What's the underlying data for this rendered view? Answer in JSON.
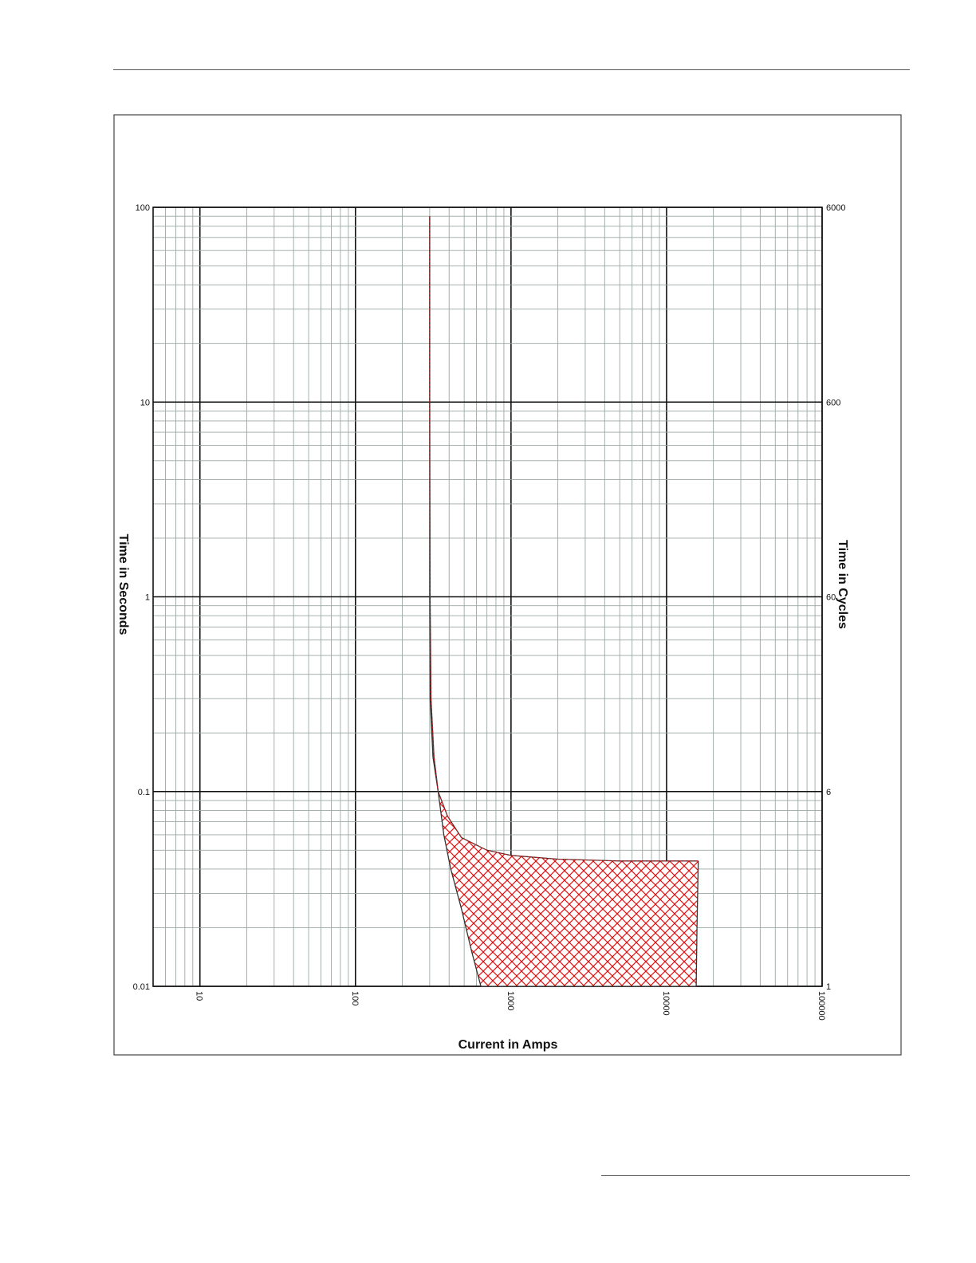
{
  "chart_data": {
    "type": "area",
    "xlabel": "Current in Amps",
    "ylabel": "Time in Seconds",
    "y2label": "Time in Cycles",
    "x_scale": "log",
    "y_scale": "log",
    "xlim": [
      5,
      100000
    ],
    "ylim": [
      0.01,
      100
    ],
    "y2lim": [
      1,
      6000
    ],
    "x_ticks": [
      "10",
      "100",
      "1000",
      "10000",
      "100000"
    ],
    "x_tick_values": [
      10,
      100,
      1000,
      10000,
      100000
    ],
    "y_ticks": [
      "100",
      "10",
      "1",
      "0.1",
      "0.01"
    ],
    "y_tick_values": [
      100,
      10,
      1,
      0.1,
      0.01
    ],
    "y2_ticks": [
      "6000",
      "600",
      "60",
      "6",
      "1"
    ],
    "y2_tick_values": [
      100,
      10,
      1,
      0.1,
      0.01
    ],
    "grid": true,
    "series": [
      {
        "upper": [
          [
            300,
            90
          ],
          [
            300,
            10
          ],
          [
            302,
            1
          ],
          [
            306,
            0.3
          ],
          [
            320,
            0.15
          ],
          [
            340,
            0.1
          ],
          [
            390,
            0.075
          ],
          [
            480,
            0.058
          ],
          [
            700,
            0.05
          ],
          [
            1000,
            0.047
          ],
          [
            2000,
            0.045
          ],
          [
            5000,
            0.044
          ],
          [
            16000,
            0.044
          ]
        ],
        "lower": [
          [
            300,
            90
          ],
          [
            300,
            10
          ],
          [
            300,
            1
          ],
          [
            302,
            0.3
          ],
          [
            315,
            0.15
          ],
          [
            340,
            0.1
          ],
          [
            370,
            0.06
          ],
          [
            410,
            0.04
          ],
          [
            480,
            0.025
          ],
          [
            560,
            0.015
          ],
          [
            640,
            0.01
          ],
          [
            15500,
            0.01
          ],
          [
            15700,
            0.02
          ],
          [
            16000,
            0.044
          ]
        ],
        "color": "#e81010"
      }
    ]
  }
}
